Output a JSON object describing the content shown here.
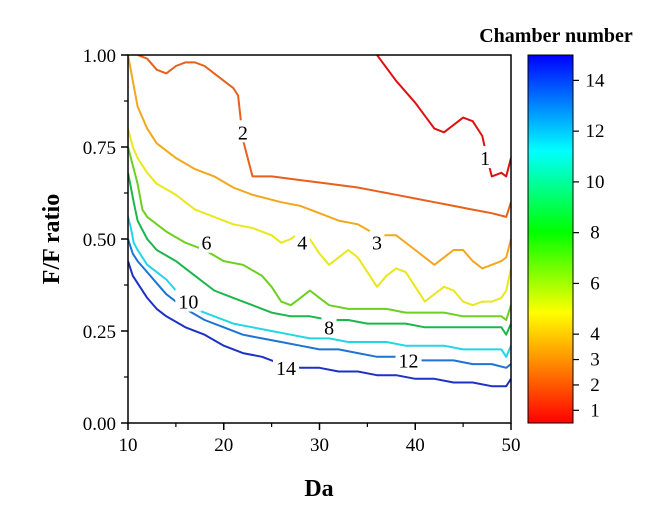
{
  "chart_data": {
    "type": "contour",
    "xlabel": "Da",
    "ylabel": "F/F ratio",
    "xlim": [
      10,
      50
    ],
    "ylim": [
      0,
      1
    ],
    "x_ticks": [
      "10",
      "20",
      "30",
      "40",
      "50"
    ],
    "y_ticks": [
      "0.00",
      "0.25",
      "0.50",
      "0.75",
      "1.00"
    ],
    "grid": false,
    "colorbar": {
      "title": "Chamber number",
      "range": [
        0.5,
        15
      ],
      "tick_labels": [
        "1",
        "2",
        "3",
        "4",
        "6",
        "8",
        "10",
        "12",
        "14"
      ],
      "tick_values": [
        1,
        2,
        3,
        4,
        6,
        8,
        10,
        12,
        14
      ],
      "colors": [
        "#ff0000",
        "#ff9900",
        "#ffff00",
        "#00ff00",
        "#00ffff",
        "#0000ff"
      ]
    },
    "series": [
      {
        "name": "1",
        "color": "#dd1111",
        "points": [
          [
            36,
            1.0
          ],
          [
            38,
            0.93
          ],
          [
            40,
            0.87
          ],
          [
            42,
            0.8
          ],
          [
            43,
            0.79
          ],
          [
            44,
            0.81
          ],
          [
            45,
            0.83
          ],
          [
            46,
            0.82
          ],
          [
            47,
            0.78
          ],
          [
            47.5,
            0.72
          ],
          [
            48,
            0.67
          ],
          [
            49,
            0.68
          ],
          [
            49.5,
            0.67
          ],
          [
            50,
            0.72
          ]
        ]
      },
      {
        "name": "2",
        "color": "#e8601c",
        "points": [
          [
            11,
            1.0
          ],
          [
            12,
            0.99
          ],
          [
            13,
            0.96
          ],
          [
            14,
            0.95
          ],
          [
            15,
            0.97
          ],
          [
            16,
            0.98
          ],
          [
            17,
            0.98
          ],
          [
            18,
            0.97
          ],
          [
            19,
            0.95
          ],
          [
            20,
            0.93
          ],
          [
            21,
            0.91
          ],
          [
            21.5,
            0.89
          ],
          [
            22,
            0.77
          ],
          [
            22.5,
            0.72
          ],
          [
            23,
            0.67
          ],
          [
            25,
            0.67
          ],
          [
            28,
            0.66
          ],
          [
            31,
            0.65
          ],
          [
            34,
            0.64
          ],
          [
            36,
            0.63
          ],
          [
            38,
            0.62
          ],
          [
            40,
            0.61
          ],
          [
            42,
            0.6
          ],
          [
            44,
            0.59
          ],
          [
            46,
            0.58
          ],
          [
            48,
            0.57
          ],
          [
            49.5,
            0.56
          ],
          [
            50,
            0.6
          ]
        ]
      },
      {
        "name": "3",
        "color": "#f2a81e",
        "points": [
          [
            10,
            1.0
          ],
          [
            10.5,
            0.93
          ],
          [
            11,
            0.86
          ],
          [
            12,
            0.8
          ],
          [
            13,
            0.76
          ],
          [
            14,
            0.74
          ],
          [
            15,
            0.72
          ],
          [
            17,
            0.69
          ],
          [
            19,
            0.67
          ],
          [
            21,
            0.64
          ],
          [
            23,
            0.62
          ],
          [
            26,
            0.6
          ],
          [
            28,
            0.59
          ],
          [
            30,
            0.57
          ],
          [
            32,
            0.55
          ],
          [
            34,
            0.54
          ],
          [
            36,
            0.51
          ],
          [
            38,
            0.51
          ],
          [
            40,
            0.47
          ],
          [
            41,
            0.45
          ],
          [
            42,
            0.43
          ],
          [
            43,
            0.45
          ],
          [
            44,
            0.47
          ],
          [
            45,
            0.47
          ],
          [
            46,
            0.44
          ],
          [
            47,
            0.42
          ],
          [
            48,
            0.43
          ],
          [
            49,
            0.44
          ],
          [
            49.5,
            0.45
          ],
          [
            50,
            0.5
          ]
        ]
      },
      {
        "name": "4",
        "color": "#e8e81a",
        "points": [
          [
            10,
            0.8
          ],
          [
            10.5,
            0.75
          ],
          [
            11,
            0.72
          ],
          [
            12,
            0.68
          ],
          [
            13,
            0.65
          ],
          [
            15,
            0.62
          ],
          [
            17,
            0.58
          ],
          [
            19,
            0.56
          ],
          [
            21,
            0.54
          ],
          [
            23,
            0.53
          ],
          [
            25,
            0.51
          ],
          [
            26,
            0.49
          ],
          [
            27,
            0.5
          ],
          [
            28,
            0.52
          ],
          [
            29,
            0.5
          ],
          [
            30,
            0.46
          ],
          [
            31,
            0.43
          ],
          [
            32,
            0.45
          ],
          [
            33,
            0.47
          ],
          [
            34,
            0.45
          ],
          [
            35,
            0.41
          ],
          [
            36,
            0.37
          ],
          [
            37,
            0.4
          ],
          [
            38,
            0.42
          ],
          [
            39,
            0.41
          ],
          [
            40,
            0.37
          ],
          [
            41,
            0.33
          ],
          [
            42,
            0.35
          ],
          [
            43,
            0.37
          ],
          [
            44,
            0.36
          ],
          [
            45,
            0.33
          ],
          [
            46,
            0.32
          ],
          [
            47,
            0.33
          ],
          [
            48,
            0.33
          ],
          [
            49,
            0.34
          ],
          [
            49.5,
            0.36
          ],
          [
            50,
            0.42
          ]
        ]
      },
      {
        "name": "6",
        "color": "#6dd021",
        "points": [
          [
            10,
            0.75
          ],
          [
            10.5,
            0.7
          ],
          [
            11,
            0.65
          ],
          [
            11.5,
            0.58
          ],
          [
            12,
            0.56
          ],
          [
            14,
            0.52
          ],
          [
            16,
            0.49
          ],
          [
            18,
            0.47
          ],
          [
            20,
            0.44
          ],
          [
            22,
            0.43
          ],
          [
            24,
            0.4
          ],
          [
            25,
            0.37
          ],
          [
            26,
            0.33
          ],
          [
            27,
            0.32
          ],
          [
            28,
            0.34
          ],
          [
            29,
            0.36
          ],
          [
            30,
            0.34
          ],
          [
            31,
            0.32
          ],
          [
            33,
            0.31
          ],
          [
            35,
            0.31
          ],
          [
            37,
            0.31
          ],
          [
            39,
            0.3
          ],
          [
            41,
            0.3
          ],
          [
            43,
            0.3
          ],
          [
            45,
            0.29
          ],
          [
            47,
            0.29
          ],
          [
            49,
            0.29
          ],
          [
            49.5,
            0.28
          ],
          [
            50,
            0.32
          ]
        ]
      },
      {
        "name": "8",
        "color": "#1db64d",
        "points": [
          [
            10,
            0.68
          ],
          [
            10.3,
            0.64
          ],
          [
            10.6,
            0.6
          ],
          [
            11,
            0.55
          ],
          [
            12,
            0.5
          ],
          [
            13,
            0.47
          ],
          [
            15,
            0.44
          ],
          [
            17,
            0.4
          ],
          [
            19,
            0.36
          ],
          [
            21,
            0.34
          ],
          [
            23,
            0.32
          ],
          [
            25,
            0.3
          ],
          [
            27,
            0.29
          ],
          [
            29,
            0.29
          ],
          [
            31,
            0.28
          ],
          [
            33,
            0.28
          ],
          [
            35,
            0.27
          ],
          [
            37,
            0.27
          ],
          [
            39,
            0.27
          ],
          [
            41,
            0.26
          ],
          [
            43,
            0.26
          ],
          [
            45,
            0.26
          ],
          [
            47,
            0.26
          ],
          [
            49,
            0.26
          ],
          [
            49.5,
            0.24
          ],
          [
            50,
            0.27
          ]
        ]
      },
      {
        "name": "10",
        "color": "#22d6e6",
        "points": [
          [
            10,
            0.56
          ],
          [
            10.3,
            0.53
          ],
          [
            10.6,
            0.49
          ],
          [
            11,
            0.47
          ],
          [
            12,
            0.43
          ],
          [
            13,
            0.41
          ],
          [
            14,
            0.39
          ],
          [
            15,
            0.36
          ],
          [
            16,
            0.32
          ],
          [
            17,
            0.31
          ],
          [
            19,
            0.29
          ],
          [
            21,
            0.27
          ],
          [
            23,
            0.26
          ],
          [
            25,
            0.25
          ],
          [
            27,
            0.24
          ],
          [
            29,
            0.23
          ],
          [
            31,
            0.23
          ],
          [
            33,
            0.22
          ],
          [
            35,
            0.22
          ],
          [
            37,
            0.22
          ],
          [
            39,
            0.21
          ],
          [
            41,
            0.21
          ],
          [
            43,
            0.21
          ],
          [
            45,
            0.2
          ],
          [
            47,
            0.2
          ],
          [
            49,
            0.2
          ],
          [
            49.5,
            0.18
          ],
          [
            50,
            0.21
          ]
        ]
      },
      {
        "name": "12",
        "color": "#1c74d4",
        "points": [
          [
            10,
            0.5
          ],
          [
            10.5,
            0.46
          ],
          [
            11,
            0.44
          ],
          [
            12,
            0.41
          ],
          [
            13,
            0.38
          ],
          [
            14,
            0.35
          ],
          [
            16,
            0.31
          ],
          [
            18,
            0.28
          ],
          [
            20,
            0.26
          ],
          [
            22,
            0.24
          ],
          [
            24,
            0.23
          ],
          [
            26,
            0.22
          ],
          [
            28,
            0.21
          ],
          [
            30,
            0.2
          ],
          [
            32,
            0.2
          ],
          [
            34,
            0.19
          ],
          [
            36,
            0.18
          ],
          [
            38,
            0.18
          ],
          [
            40,
            0.17
          ],
          [
            42,
            0.17
          ],
          [
            44,
            0.17
          ],
          [
            46,
            0.16
          ],
          [
            48,
            0.16
          ],
          [
            49.5,
            0.15
          ],
          [
            50,
            0.16
          ]
        ]
      },
      {
        "name": "14",
        "color": "#1d31c6",
        "points": [
          [
            10,
            0.44
          ],
          [
            10.5,
            0.4
          ],
          [
            11,
            0.38
          ],
          [
            12,
            0.34
          ],
          [
            13,
            0.31
          ],
          [
            14,
            0.29
          ],
          [
            16,
            0.26
          ],
          [
            18,
            0.24
          ],
          [
            20,
            0.21
          ],
          [
            22,
            0.19
          ],
          [
            24,
            0.18
          ],
          [
            26,
            0.16
          ],
          [
            28,
            0.15
          ],
          [
            30,
            0.15
          ],
          [
            32,
            0.14
          ],
          [
            34,
            0.14
          ],
          [
            36,
            0.13
          ],
          [
            38,
            0.13
          ],
          [
            40,
            0.12
          ],
          [
            42,
            0.12
          ],
          [
            44,
            0.11
          ],
          [
            46,
            0.11
          ],
          [
            48,
            0.1
          ],
          [
            49.5,
            0.1
          ],
          [
            50,
            0.12
          ]
        ]
      }
    ],
    "annotations": [
      {
        "text": "1",
        "x": 47.3,
        "y": 0.72
      },
      {
        "text": "2",
        "x": 22.0,
        "y": 0.79
      },
      {
        "text": "3",
        "x": 36.0,
        "y": 0.49
      },
      {
        "text": "4",
        "x": 28.2,
        "y": 0.49
      },
      {
        "text": "6",
        "x": 18.2,
        "y": 0.49
      },
      {
        "text": "8",
        "x": 31.0,
        "y": 0.26
      },
      {
        "text": "10",
        "x": 16.3,
        "y": 0.33
      },
      {
        "text": "12",
        "x": 39.3,
        "y": 0.17
      },
      {
        "text": "14",
        "x": 26.5,
        "y": 0.15
      }
    ]
  }
}
